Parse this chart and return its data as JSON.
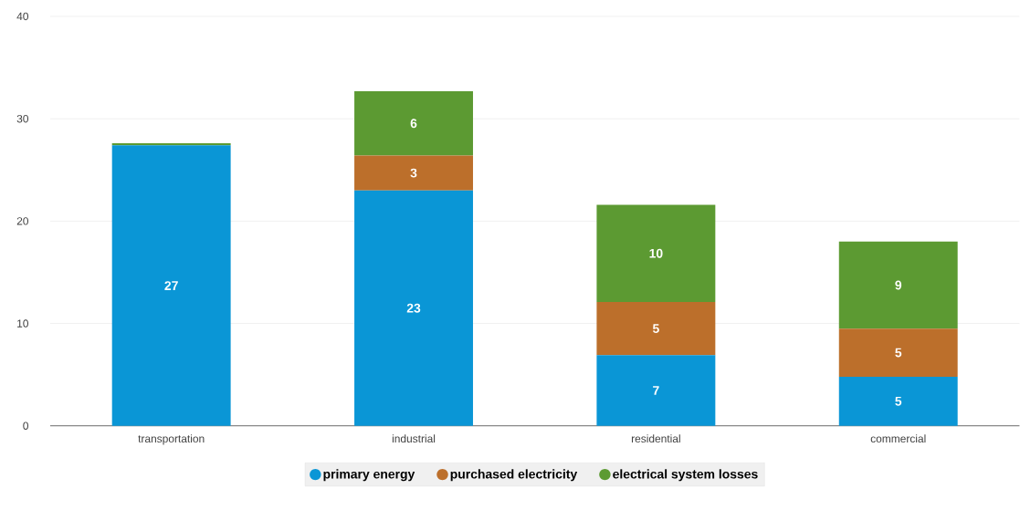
{
  "chart_data": {
    "type": "bar",
    "stacked": true,
    "categories": [
      "transportation",
      "industrial",
      "residential",
      "commercial"
    ],
    "series": [
      {
        "name": "primary energy",
        "color": "#0a96d6",
        "values": [
          27.4,
          23.0,
          6.9,
          4.8
        ],
        "value_labels": [
          "27",
          "23",
          "7",
          "5"
        ]
      },
      {
        "name": "purchased electricity",
        "color": "#bc6f2b",
        "values": [
          null,
          3.4,
          5.2,
          4.7
        ],
        "value_labels": [
          null,
          "3",
          "5",
          "5"
        ]
      },
      {
        "name": "electrical system losses",
        "color": "#5c9a32",
        "values": [
          0.2,
          6.3,
          9.5,
          8.5
        ],
        "value_labels": [
          null,
          "6",
          "10",
          "9"
        ]
      }
    ],
    "ylim": [
      0,
      40
    ],
    "yticks": [
      0,
      10,
      20,
      30,
      40
    ],
    "grid": "y",
    "legend": "bottom"
  }
}
